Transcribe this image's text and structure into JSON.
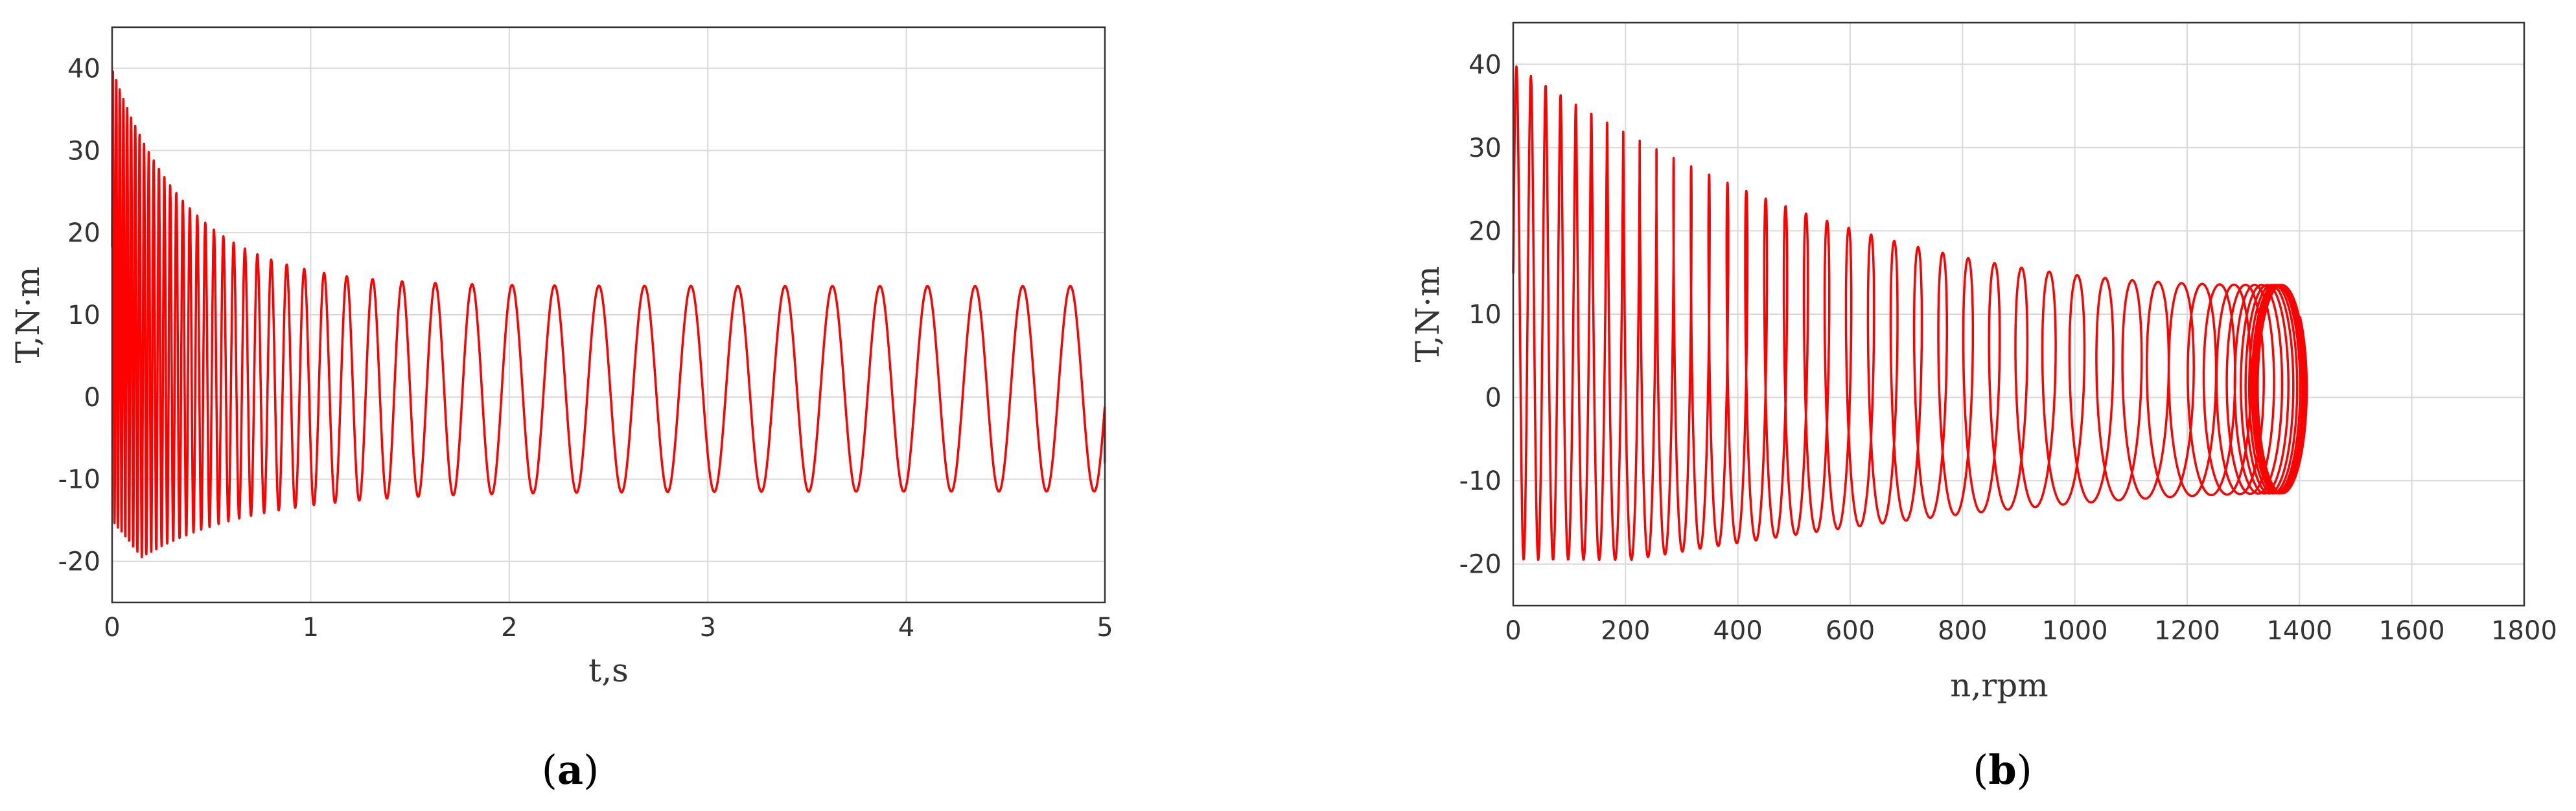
{
  "figure": {
    "panel_a_label": {
      "open": "(",
      "letter": "a",
      "close": ")"
    },
    "panel_b_label": {
      "open": "(",
      "letter": "b",
      "close": ")"
    }
  },
  "chart_data": [
    {
      "id": "a",
      "type": "line",
      "title": "",
      "xlabel": "t,s",
      "ylabel": "T,N·m",
      "xlim": [
        0,
        5
      ],
      "ylim": [
        -25,
        45
      ],
      "xticks": [
        0,
        1,
        2,
        3,
        4,
        5
      ],
      "yticks": [
        -20,
        -10,
        0,
        10,
        20,
        30,
        40
      ],
      "grid": true,
      "color": "#ff0000",
      "series": [
        {
          "name": "",
          "description_free": true,
          "start_upper": 40,
          "start_lower": -15,
          "peak_lower": -19.5,
          "peak_lower_t": 0.15,
          "transient_end_t": 1.2,
          "steady_max": 13.5,
          "steady_min": -11.5,
          "steady_period_s": 0.24,
          "final_value": -8
        }
      ]
    },
    {
      "id": "b",
      "type": "line",
      "title": "",
      "xlabel": "n,rpm",
      "ylabel": "T,N·m",
      "xlim": [
        0,
        1800
      ],
      "ylim": [
        -25,
        45
      ],
      "xticks": [
        0,
        200,
        400,
        600,
        800,
        1000,
        1200,
        1400,
        1600,
        1800
      ],
      "yticks": [
        -20,
        -10,
        0,
        10,
        20,
        30,
        40
      ],
      "grid": true,
      "color": "#ff0000",
      "series": [
        {
          "name": "",
          "start_upper": 40,
          "peak_lower": -19.5,
          "steady_speed_rpm": 1375,
          "steady_max": 13.5,
          "steady_min": -11.5,
          "max_speed_rpm": 1420
        }
      ]
    }
  ]
}
